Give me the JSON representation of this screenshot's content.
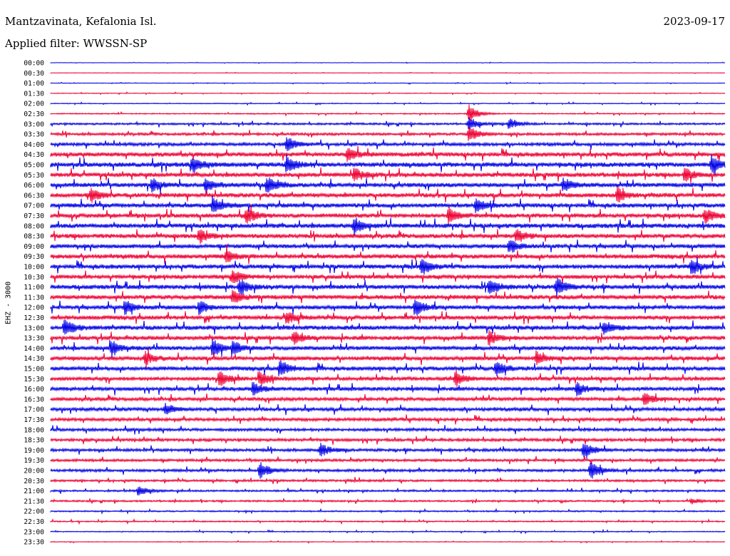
{
  "header": {
    "station": "Mantzavinata, Kefalonia Isl.",
    "date": "2023-09-17",
    "filter": "Applied filter: WWSSN-SP"
  },
  "chart_data": {
    "type": "line",
    "title": "Mantzavinata, Kefalonia Isl.",
    "ylabel": "EHZ - 3000",
    "trace_colors": [
      "#0000e6",
      "#ee0033"
    ],
    "rows": [
      "00:00",
      "00:30",
      "01:00",
      "01:30",
      "02:00",
      "02:30",
      "03:00",
      "03:30",
      "04:00",
      "04:30",
      "05:00",
      "05:30",
      "06:00",
      "06:30",
      "07:00",
      "07:30",
      "08:00",
      "08:30",
      "09:00",
      "09:30",
      "10:00",
      "10:30",
      "11:00",
      "11:30",
      "12:00",
      "12:30",
      "13:00",
      "13:30",
      "14:00",
      "14:30",
      "15:00",
      "15:30",
      "16:00",
      "16:30",
      "17:00",
      "17:30",
      "18:00",
      "18:30",
      "19:00",
      "19:30",
      "20:00",
      "20:30",
      "21:00",
      "21:30",
      "22:00",
      "22:30",
      "23:00",
      "23:30"
    ],
    "background_level": [
      0.3,
      0.3,
      0.4,
      0.5,
      0.6,
      0.8,
      1.4,
      1.8,
      2.2,
      3.0,
      3.2,
      3.0,
      3.0,
      3.0,
      3.0,
      3.0,
      3.2,
      3.0,
      2.8,
      3.0,
      3.0,
      2.8,
      3.0,
      3.0,
      2.8,
      2.8,
      3.0,
      2.8,
      2.8,
      2.8,
      2.8,
      2.6,
      2.6,
      2.4,
      2.4,
      2.2,
      2.0,
      2.0,
      2.0,
      1.8,
      1.8,
      1.5,
      1.3,
      1.2,
      1.0,
      0.9,
      0.7,
      0.5
    ],
    "events": [
      {
        "row": 5,
        "x": 0.62,
        "amp": 14
      },
      {
        "row": 6,
        "x": 0.62,
        "amp": 10
      },
      {
        "row": 6,
        "x": 0.68,
        "amp": 8
      },
      {
        "row": 7,
        "x": 0.62,
        "amp": 12
      },
      {
        "row": 8,
        "x": 0.35,
        "amp": 12
      },
      {
        "row": 9,
        "x": 0.44,
        "amp": 10
      },
      {
        "row": 10,
        "x": 0.21,
        "amp": 12
      },
      {
        "row": 10,
        "x": 0.35,
        "amp": 14
      },
      {
        "row": 10,
        "x": 0.98,
        "amp": 14
      },
      {
        "row": 11,
        "x": 0.45,
        "amp": 10
      },
      {
        "row": 11,
        "x": 0.94,
        "amp": 10
      },
      {
        "row": 12,
        "x": 0.15,
        "amp": 10
      },
      {
        "row": 12,
        "x": 0.23,
        "amp": 10
      },
      {
        "row": 12,
        "x": 0.32,
        "amp": 12
      },
      {
        "row": 12,
        "x": 0.76,
        "amp": 10
      },
      {
        "row": 13,
        "x": 0.06,
        "amp": 10
      },
      {
        "row": 13,
        "x": 0.84,
        "amp": 12
      },
      {
        "row": 14,
        "x": 0.24,
        "amp": 12
      },
      {
        "row": 14,
        "x": 0.63,
        "amp": 10
      },
      {
        "row": 15,
        "x": 0.29,
        "amp": 12
      },
      {
        "row": 15,
        "x": 0.59,
        "amp": 12
      },
      {
        "row": 15,
        "x": 0.97,
        "amp": 12
      },
      {
        "row": 16,
        "x": 0.45,
        "amp": 12
      },
      {
        "row": 17,
        "x": 0.22,
        "amp": 10
      },
      {
        "row": 17,
        "x": 0.69,
        "amp": 10
      },
      {
        "row": 18,
        "x": 0.68,
        "amp": 10
      },
      {
        "row": 19,
        "x": 0.26,
        "amp": 10
      },
      {
        "row": 20,
        "x": 0.55,
        "amp": 12
      },
      {
        "row": 20,
        "x": 0.95,
        "amp": 10
      },
      {
        "row": 21,
        "x": 0.27,
        "amp": 10
      },
      {
        "row": 22,
        "x": 0.28,
        "amp": 12
      },
      {
        "row": 22,
        "x": 0.65,
        "amp": 12
      },
      {
        "row": 22,
        "x": 0.75,
        "amp": 14
      },
      {
        "row": 23,
        "x": 0.27,
        "amp": 10
      },
      {
        "row": 24,
        "x": 0.11,
        "amp": 10
      },
      {
        "row": 24,
        "x": 0.22,
        "amp": 10
      },
      {
        "row": 24,
        "x": 0.54,
        "amp": 14
      },
      {
        "row": 25,
        "x": 0.35,
        "amp": 10
      },
      {
        "row": 26,
        "x": 0.02,
        "amp": 14
      },
      {
        "row": 26,
        "x": 0.82,
        "amp": 10
      },
      {
        "row": 27,
        "x": 0.36,
        "amp": 10
      },
      {
        "row": 27,
        "x": 0.65,
        "amp": 10
      },
      {
        "row": 28,
        "x": 0.09,
        "amp": 12
      },
      {
        "row": 28,
        "x": 0.24,
        "amp": 14
      },
      {
        "row": 28,
        "x": 0.27,
        "amp": 10
      },
      {
        "row": 29,
        "x": 0.14,
        "amp": 10
      },
      {
        "row": 29,
        "x": 0.72,
        "amp": 10
      },
      {
        "row": 30,
        "x": 0.34,
        "amp": 12
      },
      {
        "row": 30,
        "x": 0.66,
        "amp": 12
      },
      {
        "row": 31,
        "x": 0.25,
        "amp": 12
      },
      {
        "row": 31,
        "x": 0.31,
        "amp": 10
      },
      {
        "row": 31,
        "x": 0.6,
        "amp": 10
      },
      {
        "row": 32,
        "x": 0.3,
        "amp": 10
      },
      {
        "row": 32,
        "x": 0.78,
        "amp": 10
      },
      {
        "row": 33,
        "x": 0.88,
        "amp": 10
      },
      {
        "row": 34,
        "x": 0.17,
        "amp": 8
      },
      {
        "row": 38,
        "x": 0.4,
        "amp": 10
      },
      {
        "row": 38,
        "x": 0.79,
        "amp": 14
      },
      {
        "row": 40,
        "x": 0.31,
        "amp": 14
      },
      {
        "row": 40,
        "x": 0.8,
        "amp": 14
      },
      {
        "row": 42,
        "x": 0.13,
        "amp": 8
      },
      {
        "row": 43,
        "x": 0.95,
        "amp": 4
      }
    ]
  }
}
